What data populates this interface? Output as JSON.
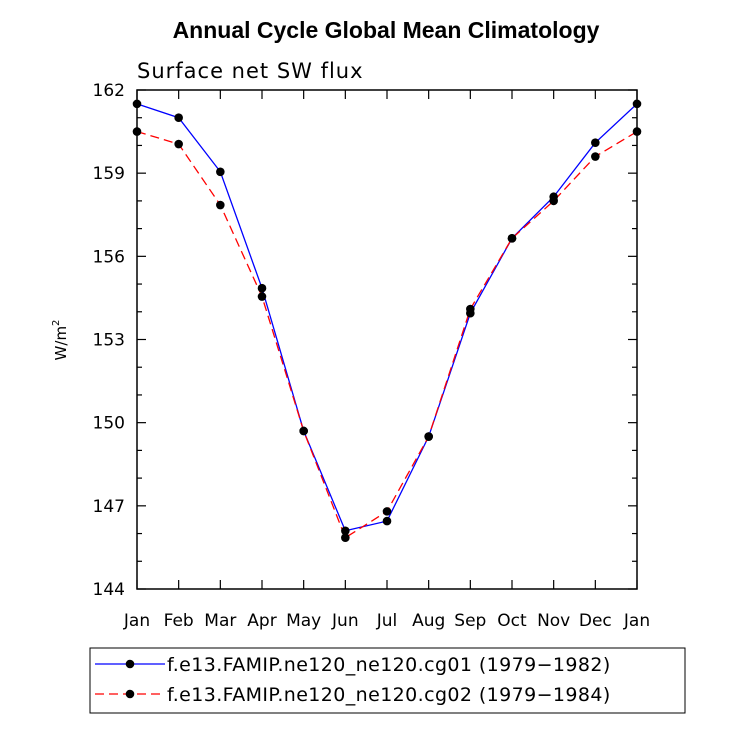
{
  "chart_data": {
    "type": "line",
    "title": "Annual Cycle Global Mean Climatology",
    "subtitle": "Surface net SW flux",
    "ylabel": "W/m",
    "ylabel_superscript": "2",
    "categories": [
      "Jan",
      "Feb",
      "Mar",
      "Apr",
      "May",
      "Jun",
      "Jul",
      "Aug",
      "Sep",
      "Oct",
      "Nov",
      "Dec",
      "Jan"
    ],
    "ylim": [
      144,
      162
    ],
    "yticks": [
      "144",
      "147",
      "150",
      "153",
      "156",
      "159",
      "162"
    ],
    "series": [
      {
        "name": "f.e13.FAMIP.ne120_ne120.cg01 (1979−1982)",
        "color": "#0000ff",
        "dash": "solid",
        "values": [
          161.5,
          161.0,
          159.05,
          154.85,
          149.7,
          146.1,
          146.45,
          149.5,
          153.95,
          156.65,
          158.15,
          160.1,
          161.5
        ]
      },
      {
        "name": "f.e13.FAMIP.ne120_ne120.cg02 (1979−1984)",
        "color": "#ff0000",
        "dash": "dashed",
        "values": [
          160.5,
          160.05,
          157.85,
          154.55,
          149.7,
          145.85,
          146.8,
          149.5,
          154.1,
          156.65,
          158.0,
          159.6,
          160.5
        ]
      }
    ]
  }
}
